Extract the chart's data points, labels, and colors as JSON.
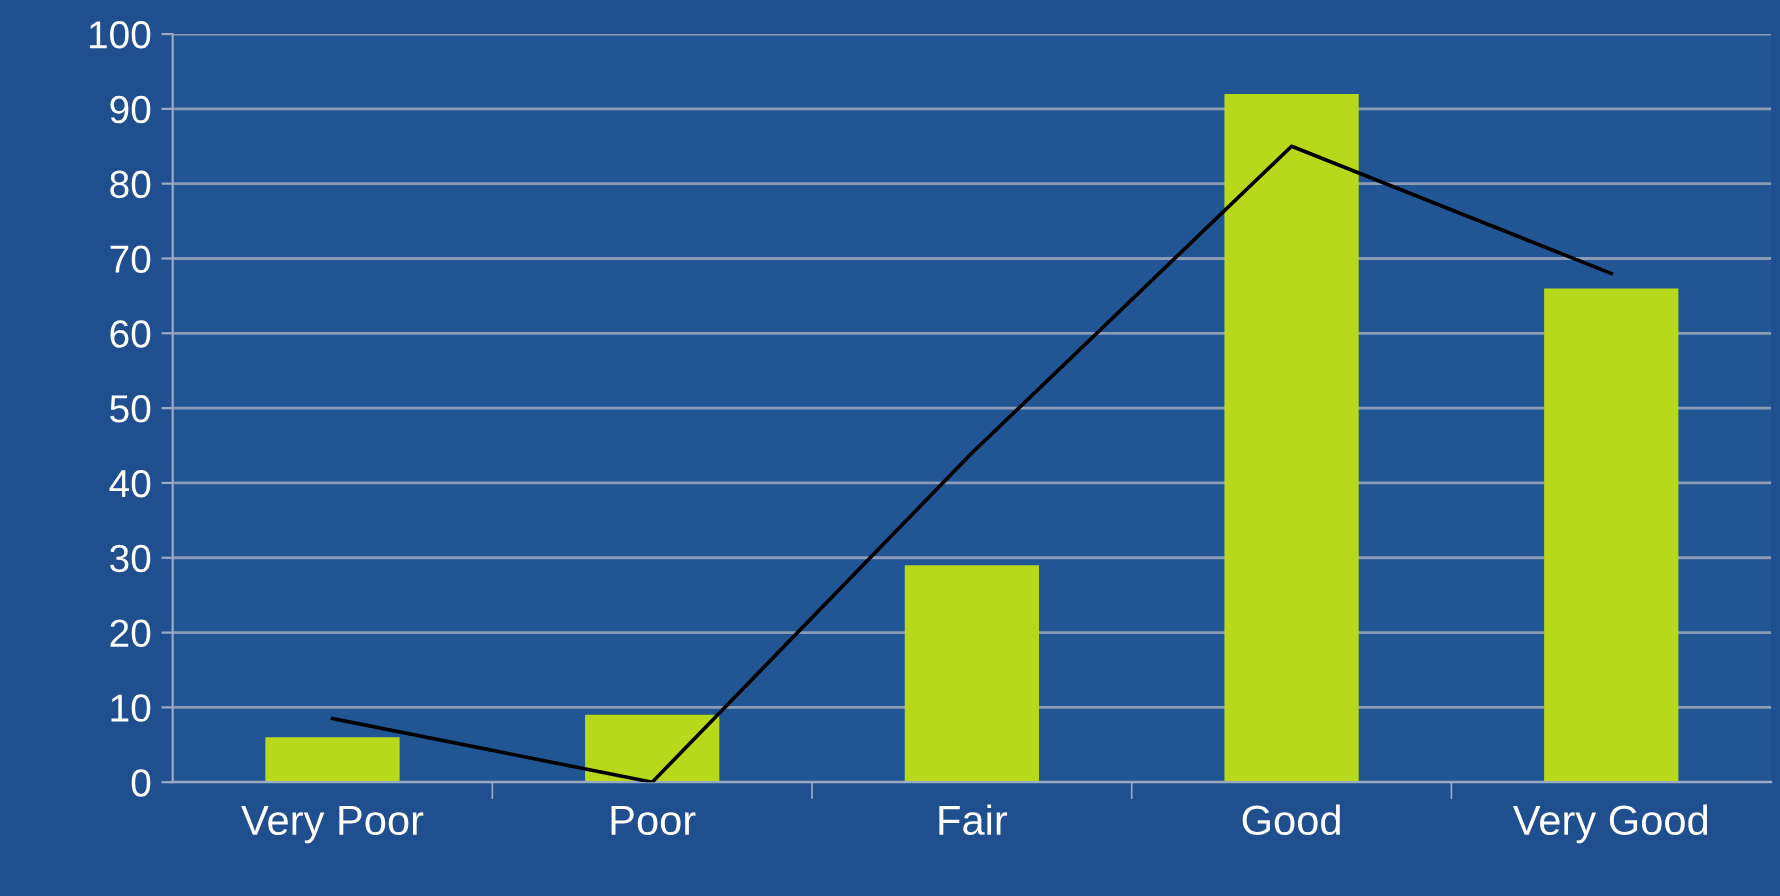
{
  "chart_data": {
    "type": "bar",
    "categories": [
      "Very Poor",
      "Poor",
      "Fair",
      "Good",
      "Very Good"
    ],
    "series": [
      {
        "color": "#b8d81c",
        "values": [
          6,
          9,
          29,
          92,
          66
        ]
      },
      {
        "type": "line",
        "color": "#000000",
        "values": [
          8.5,
          0,
          44,
          85,
          68
        ]
      }
    ],
    "ylim": [
      0,
      100
    ],
    "yticks": [
      0,
      10,
      20,
      30,
      40,
      50,
      60,
      70,
      80,
      90,
      100
    ],
    "grid": "y",
    "line_style": "solid",
    "marker": "none"
  }
}
